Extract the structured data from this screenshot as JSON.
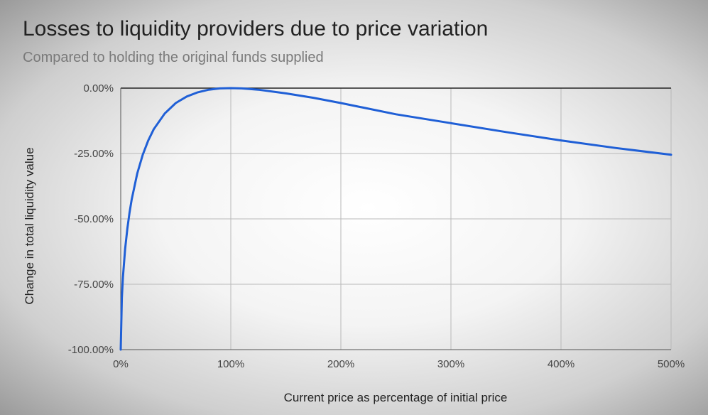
{
  "chart_data": {
    "type": "line",
    "title": "Losses to liquidity providers due to price variation",
    "subtitle": "Compared to holding the original funds supplied",
    "xlabel": "Current price as percentage of initial price",
    "ylabel": "Change in total liquidity value",
    "x_ticks": [
      "0%",
      "100%",
      "200%",
      "300%",
      "400%",
      "500%"
    ],
    "y_ticks": [
      "0.00%",
      "-25.00%",
      "-50.00%",
      "-75.00%",
      "-100.00%"
    ],
    "xlim": [
      0,
      500
    ],
    "ylim": [
      -100,
      0
    ],
    "grid": true,
    "series": [
      {
        "color": "#1f5fd6",
        "x": [
          0,
          1,
          2,
          4,
          6,
          8,
          10,
          15,
          20,
          25,
          30,
          40,
          50,
          60,
          70,
          80,
          90,
          100,
          110,
          125,
          150,
          175,
          200,
          250,
          300,
          350,
          400,
          450,
          500
        ],
        "y": [
          -100,
          -80.2,
          -72.3,
          -61.5,
          -53.8,
          -47.6,
          -42.5,
          -32.6,
          -25.5,
          -20.0,
          -15.7,
          -9.7,
          -5.7,
          -3.2,
          -1.6,
          -0.6,
          -0.1,
          0,
          -0.1,
          -0.6,
          -2.0,
          -3.7,
          -5.7,
          -10.0,
          -13.4,
          -16.8,
          -20.0,
          -22.9,
          -25.5
        ]
      }
    ]
  }
}
